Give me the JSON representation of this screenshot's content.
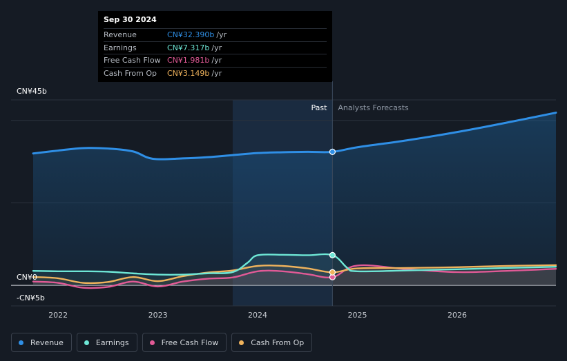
{
  "tooltip": {
    "date": "Sep 30 2024",
    "rows": [
      {
        "label": "Revenue",
        "value": "CN¥32.390b",
        "unit": "/yr",
        "color": "#2f8fe6"
      },
      {
        "label": "Earnings",
        "value": "CN¥7.317b",
        "unit": "/yr",
        "color": "#6ee7d6"
      },
      {
        "label": "Free Cash Flow",
        "value": "CN¥1.981b",
        "unit": "/yr",
        "color": "#e15a96"
      },
      {
        "label": "Cash From Op",
        "value": "CN¥3.149b",
        "unit": "/yr",
        "color": "#f0b35c"
      }
    ]
  },
  "labels": {
    "past": "Past",
    "forecast": "Analysts Forecasts"
  },
  "legend": [
    {
      "label": "Revenue",
      "color": "#2f8fe6"
    },
    {
      "label": "Earnings",
      "color": "#6ee7d6"
    },
    {
      "label": "Free Cash Flow",
      "color": "#e15a96"
    },
    {
      "label": "Cash From Op",
      "color": "#f0b35c"
    }
  ],
  "chart_data": {
    "type": "line",
    "ylim": [
      -5,
      45
    ],
    "y_ticks": [
      {
        "value": 45,
        "label": "CN¥45b"
      },
      {
        "value": 0,
        "label": "CN¥0"
      },
      {
        "value": -5,
        "label": "-CN¥5b"
      }
    ],
    "x_ticks": [
      2022,
      2023,
      2024,
      2025,
      2026
    ],
    "xlim": [
      2021.55,
      2026.99
    ],
    "past_end": 2024.75,
    "highlight_start": 2023.75,
    "series": [
      {
        "name": "Revenue",
        "color": "#2f8fe6",
        "fill": true,
        "points": [
          [
            2021.75,
            32.0
          ],
          [
            2022.0,
            32.7
          ],
          [
            2022.25,
            33.3
          ],
          [
            2022.5,
            33.2
          ],
          [
            2022.75,
            32.5
          ],
          [
            2022.95,
            30.7
          ],
          [
            2023.25,
            30.8
          ],
          [
            2023.5,
            31.1
          ],
          [
            2023.75,
            31.6
          ],
          [
            2024.0,
            32.1
          ],
          [
            2024.25,
            32.3
          ],
          [
            2024.5,
            32.4
          ],
          [
            2024.75,
            32.39
          ],
          [
            2025.0,
            33.5
          ],
          [
            2025.5,
            35.2
          ],
          [
            2026.0,
            37.2
          ],
          [
            2026.5,
            39.5
          ],
          [
            2026.99,
            41.9
          ]
        ]
      },
      {
        "name": "Earnings",
        "color": "#6ee7d6",
        "fill": false,
        "points": [
          [
            2021.75,
            3.5
          ],
          [
            2022.0,
            3.4
          ],
          [
            2022.25,
            3.4
          ],
          [
            2022.5,
            3.3
          ],
          [
            2022.75,
            2.9
          ],
          [
            2023.0,
            2.6
          ],
          [
            2023.25,
            2.6
          ],
          [
            2023.5,
            2.9
          ],
          [
            2023.75,
            3.2
          ],
          [
            2023.9,
            5.5
          ],
          [
            2024.0,
            7.3
          ],
          [
            2024.25,
            7.4
          ],
          [
            2024.5,
            7.3
          ],
          [
            2024.75,
            7.317
          ],
          [
            2024.9,
            4.2
          ],
          [
            2025.0,
            3.4
          ],
          [
            2025.5,
            3.6
          ],
          [
            2026.0,
            3.9
          ],
          [
            2026.5,
            4.2
          ],
          [
            2026.99,
            4.5
          ]
        ]
      },
      {
        "name": "Free Cash Flow",
        "color": "#e15a96",
        "fill": false,
        "points": [
          [
            2021.75,
            0.9
          ],
          [
            2022.0,
            0.6
          ],
          [
            2022.25,
            -0.6
          ],
          [
            2022.5,
            -0.4
          ],
          [
            2022.75,
            0.9
          ],
          [
            2023.0,
            -0.3
          ],
          [
            2023.25,
            0.9
          ],
          [
            2023.5,
            1.6
          ],
          [
            2023.75,
            1.9
          ],
          [
            2024.0,
            3.4
          ],
          [
            2024.25,
            3.4
          ],
          [
            2024.5,
            2.7
          ],
          [
            2024.75,
            1.981
          ],
          [
            2025.0,
            4.8
          ],
          [
            2025.5,
            3.9
          ],
          [
            2026.0,
            3.2
          ],
          [
            2026.5,
            3.5
          ],
          [
            2026.99,
            4.0
          ]
        ]
      },
      {
        "name": "Cash From Op",
        "color": "#f0b35c",
        "fill": false,
        "points": [
          [
            2021.75,
            2.0
          ],
          [
            2022.0,
            1.7
          ],
          [
            2022.25,
            0.6
          ],
          [
            2022.5,
            0.8
          ],
          [
            2022.75,
            2.0
          ],
          [
            2023.0,
            1.0
          ],
          [
            2023.25,
            2.2
          ],
          [
            2023.5,
            3.1
          ],
          [
            2023.75,
            3.6
          ],
          [
            2024.0,
            4.7
          ],
          [
            2024.25,
            4.7
          ],
          [
            2024.5,
            4.1
          ],
          [
            2024.75,
            3.149
          ],
          [
            2025.0,
            4.1
          ],
          [
            2025.5,
            4.2
          ],
          [
            2026.0,
            4.4
          ],
          [
            2026.5,
            4.7
          ],
          [
            2026.99,
            4.9
          ]
        ]
      }
    ]
  }
}
